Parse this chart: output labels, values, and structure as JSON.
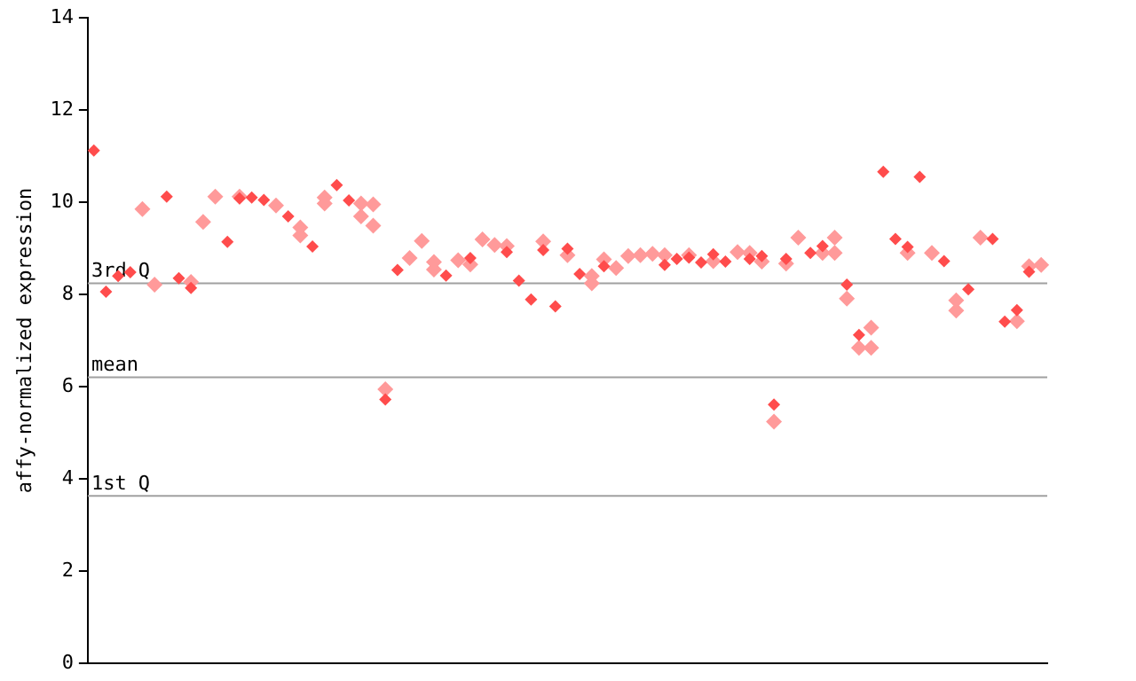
{
  "chart_data": {
    "type": "scatter",
    "ylabel": "affy-normalized expression",
    "ylim": [
      0,
      14
    ],
    "yticks": [
      0,
      2,
      4,
      6,
      8,
      10,
      12,
      14
    ],
    "tick_labels": "y",
    "marker": "diamond",
    "categories": [
      null,
      null,
      null,
      null,
      null,
      null,
      null,
      null,
      null,
      null,
      null,
      null,
      null,
      null,
      null,
      null,
      null,
      null,
      null,
      null,
      null,
      null,
      null,
      null,
      null,
      null,
      null,
      null,
      null,
      null,
      null,
      null,
      null,
      null,
      null,
      null,
      null,
      null,
      null,
      null,
      null,
      null,
      null,
      null,
      null,
      null,
      null,
      null,
      null,
      null,
      null,
      null,
      null,
      null,
      null,
      null,
      null,
      null,
      null,
      null,
      null,
      null,
      null,
      null,
      null,
      null,
      null,
      null,
      null,
      null,
      null,
      null,
      null,
      null,
      null,
      null,
      null,
      null,
      null
    ],
    "series": [
      {
        "color": "#ff4c4c",
        "values": [
          11.12,
          8.06,
          8.4,
          8.48,
          null,
          null,
          10.12,
          8.35,
          8.14,
          null,
          null,
          9.14,
          10.08,
          10.1,
          10.05,
          null,
          9.69,
          null,
          9.04,
          null,
          10.37,
          10.04,
          null,
          null,
          5.72,
          8.53,
          null,
          null,
          null,
          8.41,
          null,
          8.79,
          null,
          null,
          8.92,
          8.3,
          7.89,
          8.96,
          7.74,
          8.99,
          8.44,
          null,
          8.61,
          null,
          null,
          null,
          null,
          8.64,
          8.77,
          8.8,
          8.69,
          8.87,
          8.71,
          null,
          8.77,
          8.83,
          5.61,
          8.77,
          null,
          8.9,
          9.05,
          null,
          8.21,
          7.12,
          null,
          10.66,
          9.2,
          9.03,
          10.55,
          null,
          8.72,
          null,
          8.11,
          null,
          9.2,
          7.41,
          7.66,
          8.49,
          null
        ]
      },
      {
        "color": "#ff9a9a",
        "values": [
          null,
          null,
          null,
          null,
          9.85,
          8.21,
          null,
          null,
          8.27,
          9.57,
          10.12,
          null,
          10.12,
          null,
          null,
          9.93,
          null,
          9.45,
          null,
          10.1,
          null,
          null,
          9.97,
          9.95,
          5.94,
          null,
          8.79,
          9.16,
          8.7,
          null,
          8.74,
          8.65,
          9.19,
          9.07,
          9.05,
          null,
          null,
          9.15,
          null,
          8.85,
          null,
          8.24,
          8.76,
          8.57,
          8.83,
          8.85,
          8.88,
          8.85,
          null,
          8.85,
          null,
          8.72,
          null,
          8.92,
          8.9,
          8.71,
          5.24,
          8.67,
          9.23,
          null,
          8.9,
          9.23,
          7.91,
          6.84,
          7.28,
          null,
          null,
          8.9,
          null,
          8.9,
          null,
          7.87,
          null,
          9.23,
          null,
          null,
          7.42,
          8.61,
          8.64
        ]
      },
      {
        "color": "#ff9a9a",
        "values": [
          null,
          null,
          null,
          null,
          null,
          null,
          null,
          null,
          null,
          null,
          null,
          null,
          null,
          null,
          null,
          null,
          null,
          9.28,
          null,
          9.97,
          null,
          null,
          9.69,
          9.49,
          null,
          null,
          null,
          null,
          8.54,
          null,
          null,
          null,
          null,
          null,
          null,
          null,
          null,
          null,
          null,
          null,
          null,
          8.4,
          null,
          null,
          null,
          null,
          null,
          null,
          null,
          null,
          null,
          null,
          null,
          null,
          null,
          null,
          null,
          null,
          null,
          null,
          null,
          8.9,
          null,
          null,
          6.84,
          null,
          null,
          null,
          null,
          null,
          null,
          7.65,
          null,
          null,
          null,
          null,
          null,
          null,
          null
        ]
      }
    ],
    "ref_lines": [
      {
        "axis": "y",
        "value": 8.24,
        "label": "3rd Q",
        "color": "#a0a0a0"
      },
      {
        "axis": "y",
        "value": 6.2,
        "label": "mean",
        "color": "#a0a0a0"
      },
      {
        "axis": "y",
        "value": 3.63,
        "label": "1st Q",
        "color": "#a0a0a0"
      }
    ]
  }
}
